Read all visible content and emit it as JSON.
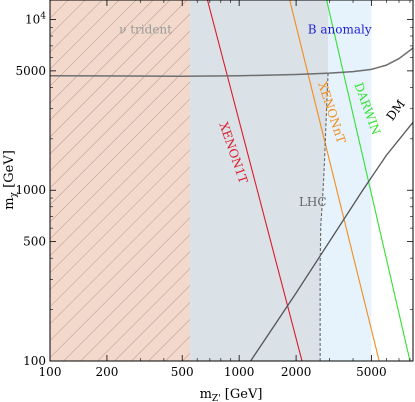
{
  "chart_data": {
    "type": "area",
    "xlabel": "m_{Z'} [GeV]",
    "ylabel": "m_χ [GeV]",
    "xscale": "log",
    "yscale": "log",
    "xlim": [
      100,
      8300
    ],
    "ylim": [
      100,
      13000
    ],
    "x_tick_labels": [
      "100",
      "200",
      "500",
      "1000",
      "2000",
      "5000"
    ],
    "y_tick_labels": [
      "100",
      "500",
      "1000",
      "5000",
      "10^4"
    ],
    "colors": {
      "nu_trident_fill": "#f2d9cc",
      "nu_trident_hatch": "#b89a90",
      "nu_trident_text": "#999999",
      "b_anomaly_fill": "#e6f3fc",
      "b_anomaly_text": "#1f1fd6",
      "grey_overlay": "#d5dce2",
      "xenon1t": "#dd1a2a",
      "xenonnt": "#f28c1c",
      "darwin": "#33e033",
      "dm": "#555555",
      "lhc": "#666666",
      "upper_curve": "#6e6e6e"
    },
    "annotations": [
      {
        "id": "nu-trident",
        "text": "ν trident",
        "x": 320,
        "y": 8300
      },
      {
        "id": "b-anomaly",
        "text": "B anomaly",
        "x": 3400,
        "y": 8300
      },
      {
        "id": "xenon1t",
        "text": "XENON1T",
        "x": 890,
        "y": 1630,
        "rotate": 71
      },
      {
        "id": "xenonnt",
        "text": "XENONnT",
        "x": 2950,
        "y": 2800,
        "rotate": 72
      },
      {
        "id": "darwin",
        "text": "DARWIN",
        "x": 4550,
        "y": 2950,
        "rotate": 70
      },
      {
        "id": "dm",
        "text": "DM",
        "x": 7000,
        "y": 2850,
        "rotate": -53
      },
      {
        "id": "lhc",
        "text": "LHC",
        "x": 2450,
        "y": 810
      }
    ],
    "regions": [
      {
        "name": "ν trident",
        "x_max": 550
      },
      {
        "name": "B anomaly",
        "x_min": 550,
        "x_max": 5000
      }
    ],
    "series": [
      {
        "id": "xenon1t",
        "x": [
          680,
          2150
        ],
        "y": [
          13000,
          100
        ]
      },
      {
        "id": "xenonnt",
        "x": [
          1850,
          5500
        ],
        "y": [
          13000,
          100
        ]
      },
      {
        "id": "darwin",
        "x": [
          2900,
          8000
        ],
        "y": [
          13000,
          100
        ]
      },
      {
        "id": "dm",
        "x": [
          1150,
          2000,
          3000,
          4500,
          6000,
          8300
        ],
        "y": [
          100,
          250,
          500,
          1000,
          1600,
          2500
        ]
      },
      {
        "id": "lhc",
        "x": [
          2680,
          2680,
          2700,
          2760,
          2820,
          2880,
          2950
        ],
        "y": [
          100,
          350,
          620,
          880,
          1400,
          2500,
          4800
        ]
      },
      {
        "id": "upper",
        "x": [
          100,
          500,
          1000,
          2000,
          3000,
          4000,
          5000,
          6000,
          7000,
          8300
        ],
        "y": [
          4680,
          4650,
          4680,
          4760,
          4850,
          4950,
          5100,
          5400,
          5900,
          6800
        ]
      }
    ]
  }
}
